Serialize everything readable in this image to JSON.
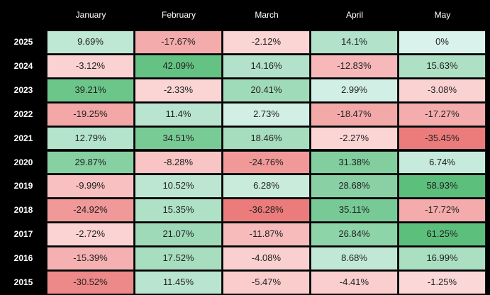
{
  "chart_data": {
    "type": "heatmap",
    "columns": [
      "January",
      "February",
      "March",
      "April",
      "May"
    ],
    "rows": [
      "2025",
      "2024",
      "2023",
      "2022",
      "2021",
      "2020",
      "2019",
      "2018",
      "2017",
      "2016",
      "2015"
    ],
    "cells": [
      [
        "9.69%",
        "-17.67%",
        "-2.12%",
        "14.1%",
        "0%"
      ],
      [
        "-3.12%",
        "42.09%",
        "14.16%",
        "-12.83%",
        "15.63%"
      ],
      [
        "39.21%",
        "-2.33%",
        "20.41%",
        "2.99%",
        "-3.08%"
      ],
      [
        "-19.25%",
        "11.4%",
        "2.73%",
        "-18.47%",
        "-17.27%"
      ],
      [
        "12.79%",
        "34.51%",
        "18.46%",
        "-2.27%",
        "-35.45%"
      ],
      [
        "29.87%",
        "-8.28%",
        "-24.76%",
        "31.38%",
        "6.74%"
      ],
      [
        "-9.99%",
        "10.52%",
        "6.28%",
        "28.68%",
        "58.93%"
      ],
      [
        "-24.92%",
        "15.35%",
        "-36.28%",
        "35.11%",
        "-17.72%"
      ],
      [
        "-2.72%",
        "21.07%",
        "-11.87%",
        "26.84%",
        "61.25%"
      ],
      [
        "-15.39%",
        "17.52%",
        "-4.08%",
        "8.68%",
        "16.99%"
      ],
      [
        "-30.52%",
        "11.45%",
        "-5.47%",
        "-4.41%",
        "-1.25%"
      ]
    ],
    "colors": {
      "positive_light": "#d9f2ec",
      "positive_dark": "#5cbf7c",
      "negative_light": "#fcdada",
      "negative_dark": "#ec7b7b"
    }
  }
}
